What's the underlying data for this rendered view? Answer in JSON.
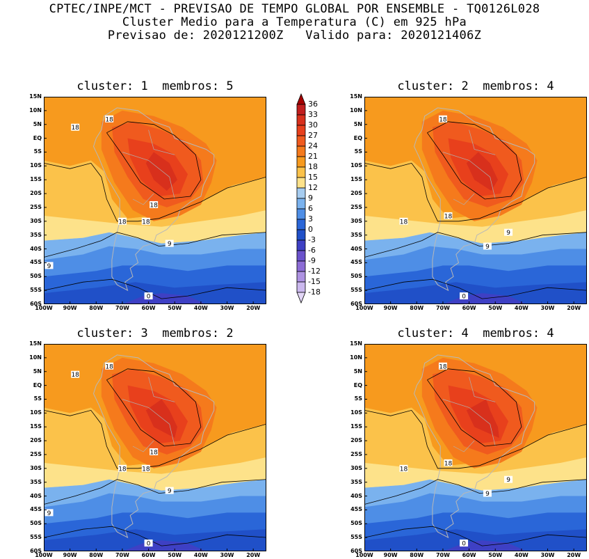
{
  "header": {
    "line1": "CPTEC/INPE/MCT - PREVISAO DE TEMPO GLOBAL POR ENSEMBLE - TQ0126L028",
    "line2": "Cluster Medio para a Temperatura (C) em 925 hPa",
    "line3": "Previsao de: 2020121200Z   Valido para: 2020121406Z"
  },
  "panels": [
    {
      "title": "cluster: 1  membros: 5",
      "contour_labels": [
        "18",
        "18",
        "18",
        "18",
        "18",
        "9",
        "9",
        "0"
      ]
    },
    {
      "title": "cluster: 2  membros: 4",
      "contour_labels": [
        "18",
        "18",
        "18",
        "9",
        "9",
        "0"
      ]
    },
    {
      "title": "cluster: 3  membros: 2",
      "contour_labels": [
        "18",
        "18",
        "18",
        "18",
        "18",
        "9",
        "9",
        "0"
      ]
    },
    {
      "title": "cluster: 4  membros: 4",
      "contour_labels": [
        "18",
        "18",
        "18",
        "9",
        "9",
        "0"
      ]
    }
  ],
  "lat_labels": [
    "15N",
    "10N",
    "5N",
    "EQ",
    "5S",
    "10S",
    "15S",
    "20S",
    "25S",
    "30S",
    "35S",
    "40S",
    "45S",
    "50S",
    "55S",
    "60S"
  ],
  "lon_labels": [
    "100W",
    "90W",
    "80W",
    "70W",
    "60W",
    "50W",
    "40W",
    "30W",
    "20W"
  ],
  "colorbar": {
    "labels": [
      "36",
      "33",
      "30",
      "27",
      "24",
      "21",
      "18",
      "15",
      "12",
      "9",
      "6",
      "3",
      "0",
      "-3",
      "-6",
      "-9",
      "-12",
      "-15",
      "-18"
    ],
    "colors": [
      "#a50000",
      "#c11e1e",
      "#d8301c",
      "#e8401c",
      "#f05a1e",
      "#f57a1c",
      "#f79a1e",
      "#fbc24a",
      "#fde28a",
      "#a6ccf0",
      "#7ab2ee",
      "#4e8ee6",
      "#2a66d8",
      "#2050c8",
      "#3e40c4",
      "#6a52cc",
      "#8c6cd6",
      "#ae92e2",
      "#cbb8ee",
      "#e2d6f6"
    ]
  }
}
